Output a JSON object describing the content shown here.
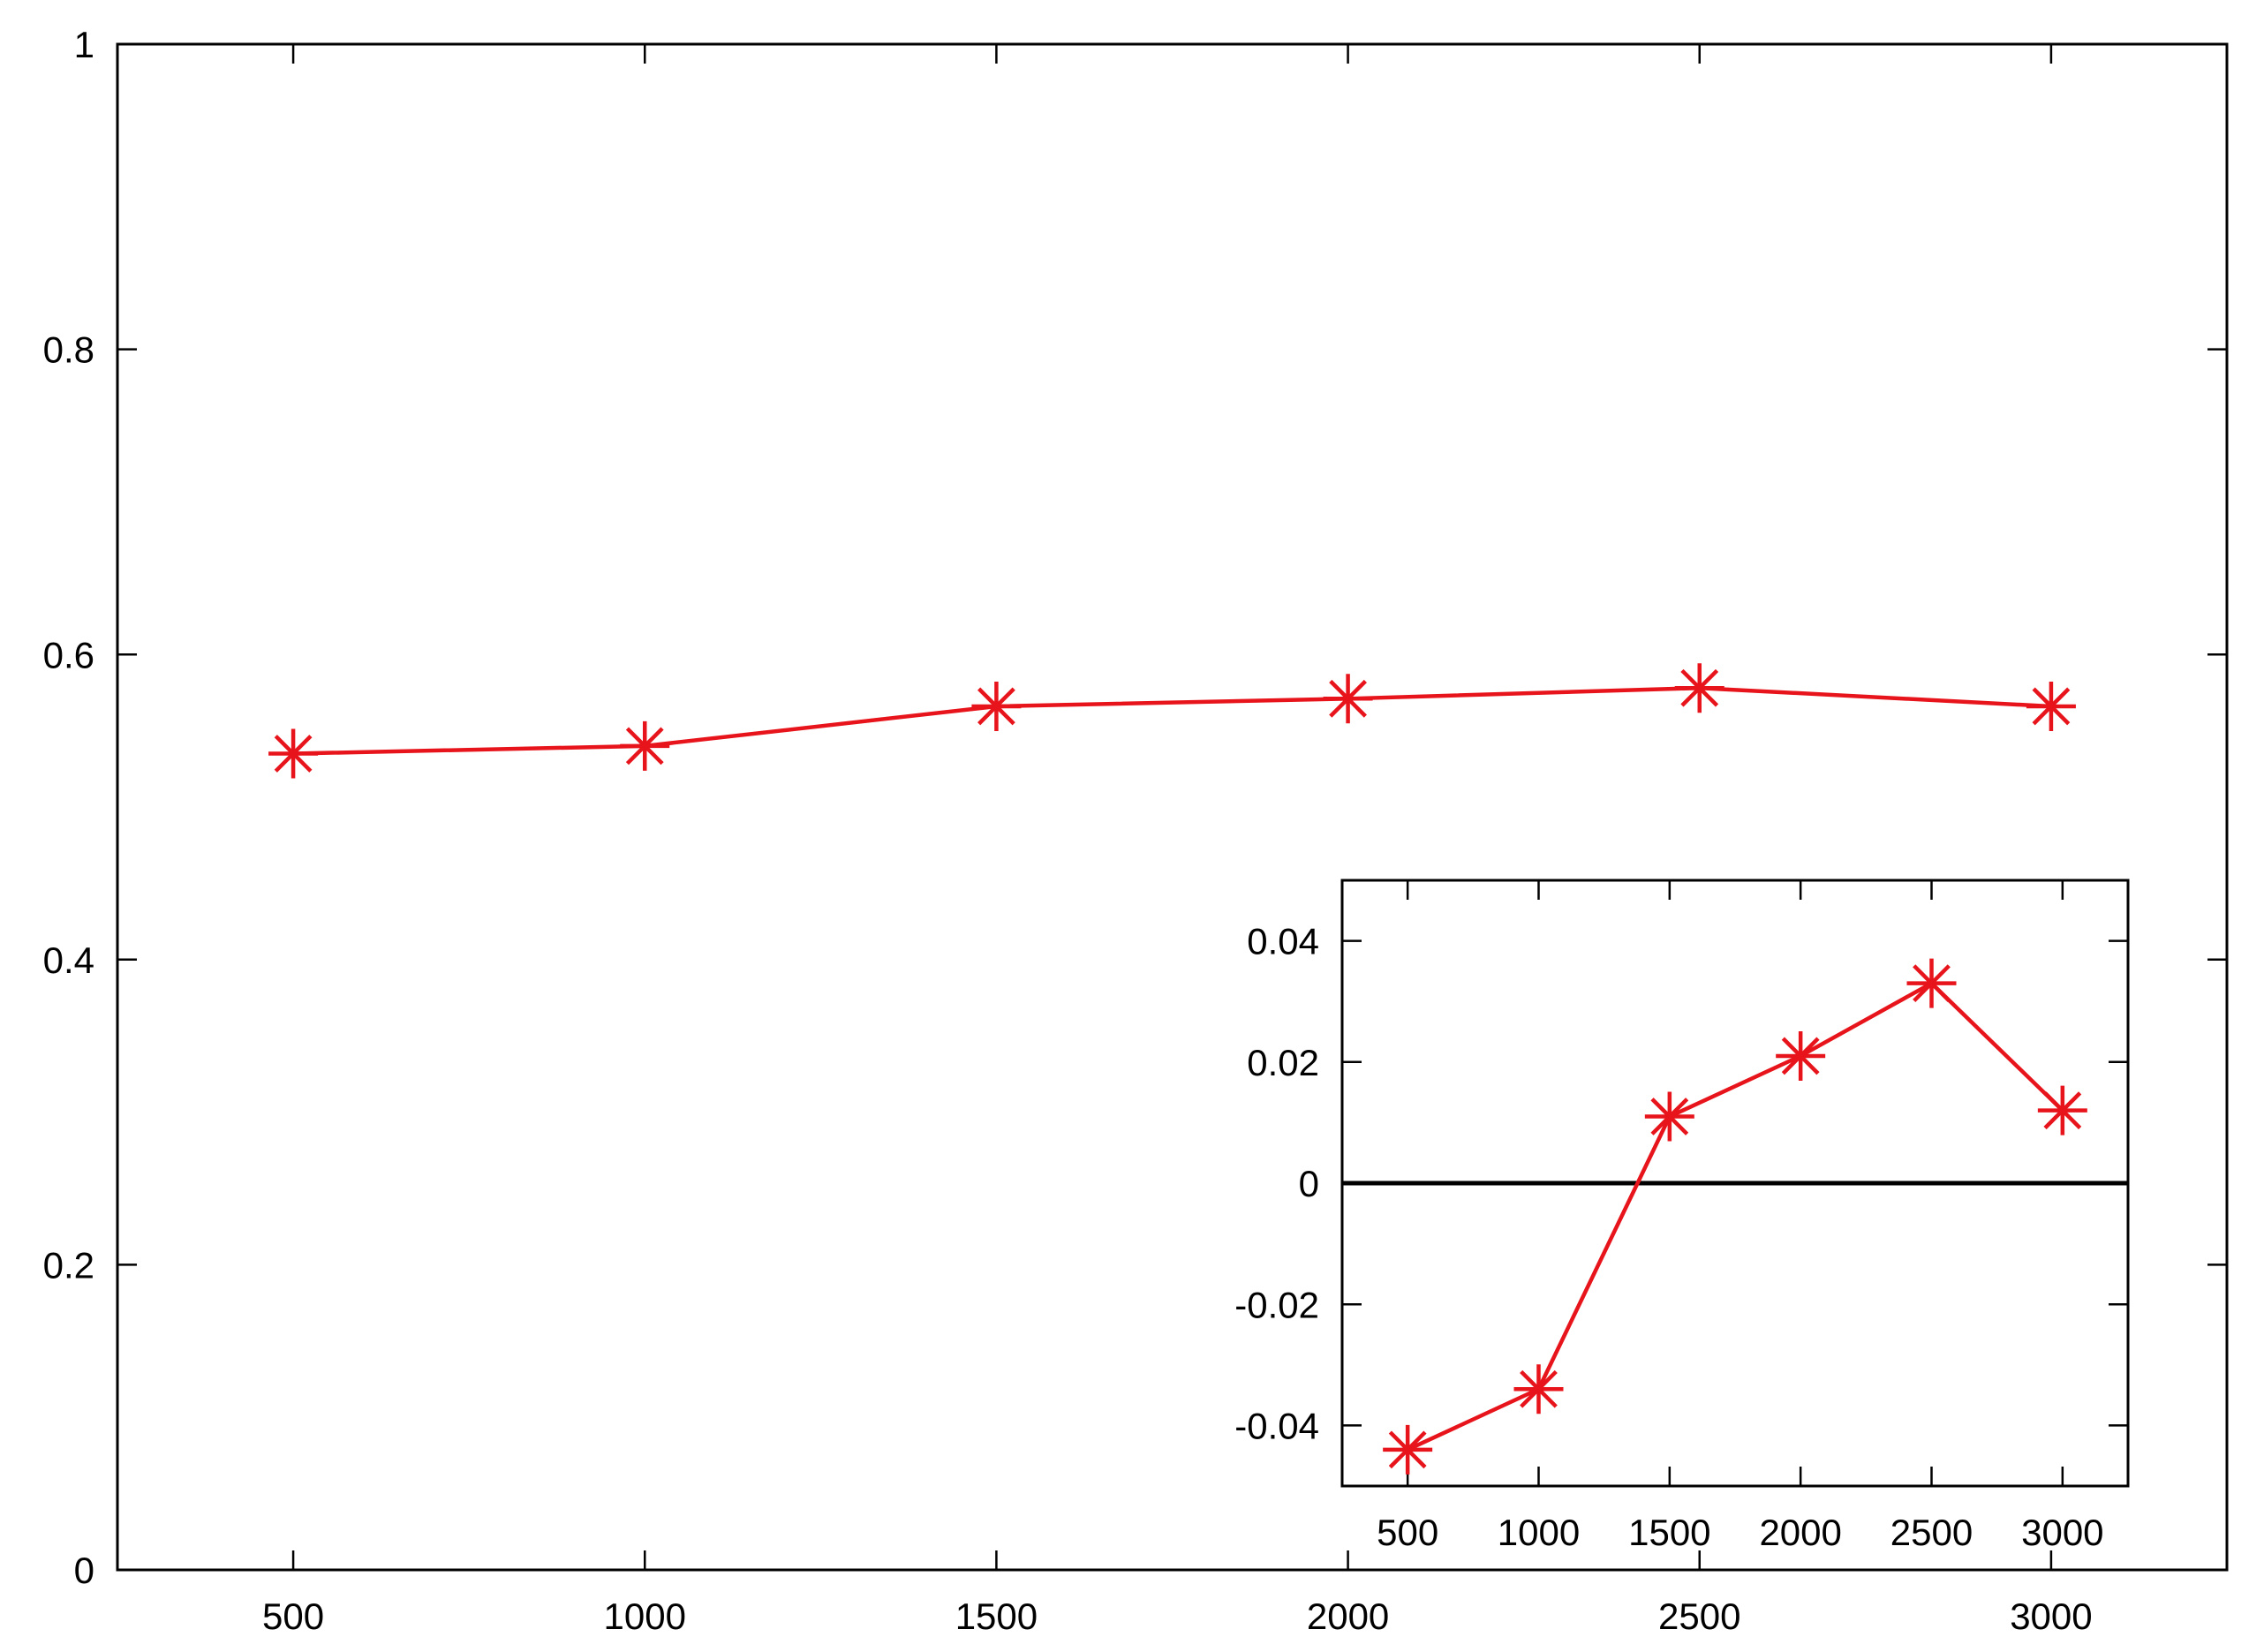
{
  "chart_data": [
    {
      "type": "line",
      "title": "",
      "xlabel": "",
      "ylabel": "",
      "xlim": [
        250,
        3250
      ],
      "ylim": [
        0,
        1
      ],
      "x_ticks": [
        500,
        1000,
        1500,
        2000,
        2500,
        3000
      ],
      "y_ticks": [
        0,
        0.2,
        0.4,
        0.6,
        0.8,
        1
      ],
      "x_tick_labels": [
        "500",
        "1000",
        "1500",
        "2000",
        "2500",
        "3000"
      ],
      "y_tick_labels": [
        "0",
        "0.2",
        "0.4",
        "0.6",
        "0.8",
        "1"
      ],
      "grid": false,
      "marker": "asterisk",
      "series": [
        {
          "color": "#e8141b",
          "x": [
            500,
            1000,
            1500,
            2000,
            2500,
            3000
          ],
          "y": [
            0.535,
            0.54,
            0.566,
            0.571,
            0.578,
            0.566
          ]
        }
      ]
    },
    {
      "type": "line",
      "title": "",
      "xlabel": "",
      "ylabel": "",
      "xlim": [
        250,
        3250
      ],
      "ylim": [
        -0.05,
        0.05
      ],
      "x_ticks": [
        500,
        1000,
        1500,
        2000,
        2500,
        3000
      ],
      "y_ticks": [
        -0.04,
        -0.02,
        0,
        0.02,
        0.04
      ],
      "x_tick_labels": [
        "500",
        "1000",
        "1500",
        "2000",
        "2500",
        "3000"
      ],
      "y_tick_labels": [
        "-0.04",
        "-0.02",
        "0",
        "0.02",
        "0.04"
      ],
      "grid": false,
      "zero_line": true,
      "marker": "asterisk",
      "series": [
        {
          "color": "#e8141b",
          "x": [
            500,
            1000,
            1500,
            2000,
            2500,
            3000
          ],
          "y": [
            -0.044,
            -0.034,
            0.011,
            0.021,
            0.033,
            0.012
          ]
        }
      ]
    }
  ]
}
